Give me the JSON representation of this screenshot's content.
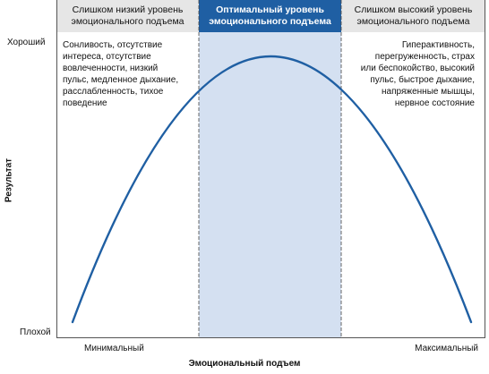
{
  "colors": {
    "accent": "#1f5fa3",
    "header_bg": "#e6e6e6",
    "center_header_bg": "#1f5fa3",
    "band_fill": "#d4e0f1",
    "curve": "#1f5fa3"
  },
  "columns": {
    "left": {
      "header": [
        "Слишком низкий уровень",
        "эмоционального подъема"
      ],
      "lines": [
        "Сонливость, отсутствие",
        "интереса, отсутствие",
        "вовлеченности, низкий",
        "пульс, медленное дыхание,",
        "расслабленность, тихое",
        "поведение"
      ]
    },
    "center": {
      "header": [
        "Оптимальный уровень",
        "эмоционального подъема"
      ]
    },
    "right": {
      "header": [
        "Слишком высокий уровень",
        "эмоционального подъема"
      ],
      "lines": [
        "Гиперактивность,",
        "перегруженность, страх",
        "или беспокойство, высокий",
        "пульс, быстрое дыхание,",
        "напряженные мышцы,",
        "нервное состояние"
      ]
    }
  },
  "axes": {
    "y_label": "Результат",
    "y_top": "Хороший",
    "y_bottom": "Плохой",
    "x_label": "Эмоциональный подъем",
    "x_left": "Минимальный",
    "x_right": "Максимальный"
  },
  "curve": {
    "shape": "inverted-parabola",
    "peak": "center-band"
  }
}
